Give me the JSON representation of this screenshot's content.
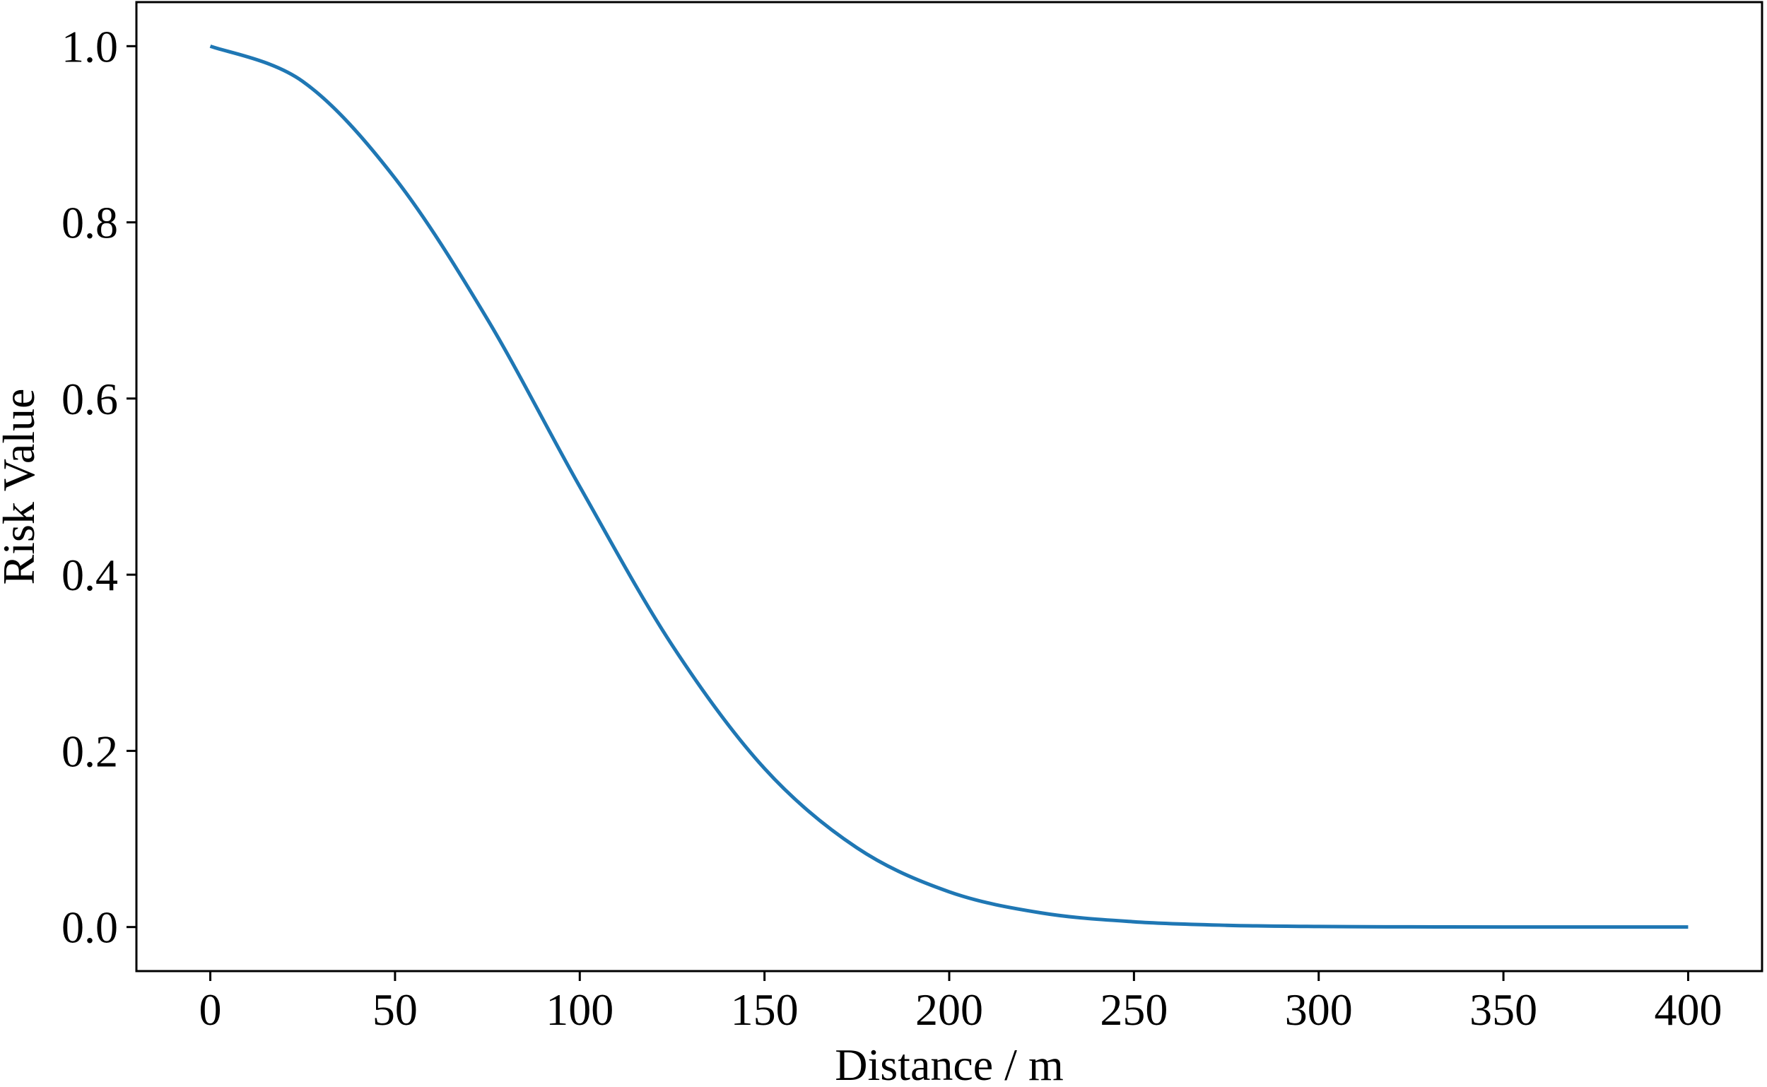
{
  "chart_data": {
    "type": "line",
    "title": "",
    "xlabel": "Distance / m",
    "ylabel": "Risk Value",
    "xlim": [
      -20,
      420
    ],
    "ylim": [
      -0.05,
      1.05
    ],
    "xticks": [
      0,
      50,
      100,
      150,
      200,
      250,
      300,
      350,
      400
    ],
    "xtick_labels": [
      "0",
      "50",
      "100",
      "150",
      "200",
      "250",
      "300",
      "350",
      "400"
    ],
    "yticks": [
      0.0,
      0.2,
      0.4,
      0.6,
      0.8,
      1.0
    ],
    "ytick_labels": [
      "0.0",
      "0.2",
      "0.4",
      "0.6",
      "0.8",
      "1.0"
    ],
    "grid": false,
    "legend": "none",
    "series": [
      {
        "color": "#1f77b4",
        "x": [
          0,
          25,
          50,
          75,
          100,
          125,
          150,
          175,
          200,
          225,
          250,
          275,
          300,
          325,
          350,
          375,
          400
        ],
        "y": [
          1.0,
          0.96,
          0.85,
          0.69,
          0.5,
          0.32,
          0.18,
          0.09,
          0.04,
          0.016,
          0.006,
          0.002,
          0.0006,
          0.0002,
          5e-05,
          1e-05,
          0.0
        ]
      }
    ]
  }
}
